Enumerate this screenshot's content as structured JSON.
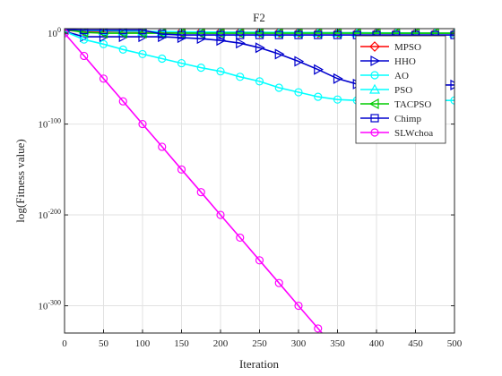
{
  "chart_data": {
    "type": "line",
    "title": "F2",
    "xlabel": "Iteration",
    "ylabel": "log(Fitness value)",
    "xlim": [
      0,
      500
    ],
    "ylim_exponent": [
      -330,
      5
    ],
    "yscale": "log",
    "grid": true,
    "legend_position": "top-right",
    "x_ticks": [
      "0",
      "50",
      "100",
      "150",
      "200",
      "250",
      "300",
      "350",
      "400",
      "450",
      "500"
    ],
    "y_ticks": [
      {
        "base": "10",
        "exp": "0",
        "value": 0
      },
      {
        "base": "10",
        "exp": "-100",
        "value": -100
      },
      {
        "base": "10",
        "exp": "-200",
        "value": -200
      },
      {
        "base": "10",
        "exp": "-300",
        "value": -300
      }
    ],
    "series": [
      {
        "name": "MPSO",
        "color": "#ff0000",
        "marker": "diamond",
        "x": [
          0,
          25,
          50,
          75,
          100,
          125,
          150,
          175,
          200,
          225,
          250,
          275,
          300,
          325,
          350,
          375,
          400,
          425,
          450,
          475,
          500
        ],
        "y": [
          3,
          2,
          1.8,
          1.6,
          1.5,
          1.4,
          1.3,
          1.2,
          1.1,
          1.0,
          0.9,
          0.8,
          0.7,
          0.6,
          0.5,
          0.4,
          0.3,
          0.2,
          0.1,
          0,
          -0.1
        ]
      },
      {
        "name": "HHO",
        "color": "#0000cd",
        "marker": "triangle-right",
        "x": [
          0,
          25,
          50,
          75,
          100,
          125,
          150,
          175,
          200,
          225,
          250,
          275,
          300,
          325,
          350,
          375,
          400,
          425,
          450,
          475,
          500
        ],
        "y": [
          2,
          -4,
          -4,
          -4,
          -4,
          -4,
          -5,
          -6,
          -8,
          -11,
          -16,
          -23,
          -31,
          -40,
          -50,
          -56,
          -57,
          -57,
          -57,
          -57,
          -57
        ]
      },
      {
        "name": "AO",
        "color": "#00ffff",
        "marker": "circle",
        "x": [
          0,
          25,
          50,
          75,
          100,
          125,
          150,
          175,
          200,
          225,
          250,
          275,
          300,
          325,
          350,
          375,
          400,
          425,
          450,
          475,
          500
        ],
        "y": [
          2,
          -7,
          -12,
          -18,
          -23,
          -28,
          -33,
          -38,
          -42,
          -48,
          -53,
          -60,
          -65,
          -70,
          -73,
          -74,
          -74,
          -74,
          -74,
          -74,
          -74
        ]
      },
      {
        "name": "PSO",
        "color": "#00ffff",
        "marker": "triangle-up",
        "x": [
          0,
          25,
          50,
          75,
          100,
          125,
          150,
          175,
          200,
          225,
          250,
          275,
          300,
          325,
          350,
          375,
          400,
          425,
          450,
          475,
          500
        ],
        "y": [
          4,
          3,
          2.5,
          2.2,
          2,
          1.8,
          1.6,
          1.4,
          1.2,
          1.1,
          1,
          0.9,
          0.8,
          0.7,
          0.6,
          0.5,
          0.4,
          0.3,
          0.2,
          0.1,
          0
        ]
      },
      {
        "name": "TACPSO",
        "color": "#00cc00",
        "marker": "triangle-left",
        "x": [
          0,
          25,
          50,
          75,
          100,
          125,
          150,
          175,
          200,
          225,
          250,
          275,
          300,
          325,
          350,
          375,
          400,
          425,
          450,
          475,
          500
        ],
        "y": [
          4,
          1,
          0,
          0,
          0,
          0,
          0,
          0,
          0,
          0,
          0,
          0,
          0,
          0,
          0,
          0,
          0,
          0,
          0,
          0,
          0
        ]
      },
      {
        "name": "Chimp",
        "color": "#0000cd",
        "marker": "square",
        "x": [
          0,
          25,
          50,
          75,
          100,
          125,
          150,
          175,
          200,
          225,
          250,
          275,
          300,
          325,
          350,
          375,
          400,
          425,
          450,
          475,
          500
        ],
        "y": [
          4,
          3.5,
          3.5,
          3.5,
          3.5,
          -1,
          -2,
          -2,
          -2,
          -2,
          -2,
          -2,
          -2,
          -2,
          -2,
          -2,
          -2,
          -2,
          -2,
          -2,
          -2
        ]
      },
      {
        "name": "SLWchoa",
        "color": "#ff00ff",
        "marker": "circle",
        "x": [
          0,
          25,
          50,
          75,
          100,
          125,
          150,
          175,
          200,
          225,
          250,
          275,
          300,
          325,
          350
        ],
        "y": [
          0,
          -25,
          -50,
          -75,
          -100,
          -125,
          -150,
          -175,
          -200,
          -225,
          -250,
          -275,
          -300,
          -325,
          -350
        ]
      }
    ]
  }
}
